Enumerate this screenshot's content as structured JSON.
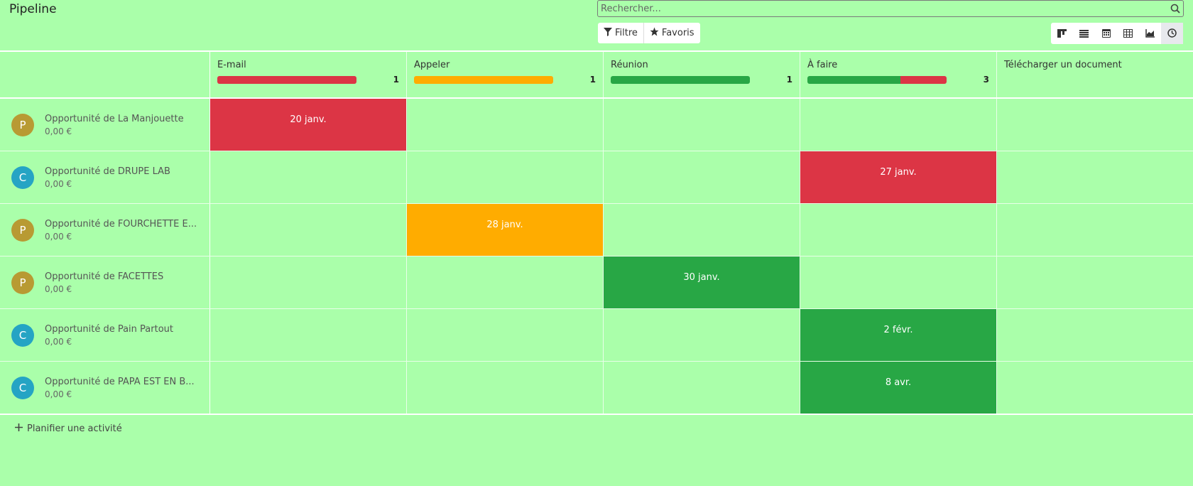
{
  "title": "Pipeline",
  "search": {
    "placeholder": "Rechercher..."
  },
  "filters": {
    "filter_label": "Filtre",
    "favorites_label": "Favoris"
  },
  "views": [
    "kanban-view-icon",
    "list-view-icon",
    "calendar-view-icon",
    "pivot-view-icon",
    "graph-view-icon",
    "activity-view-icon"
  ],
  "columns": [
    {
      "name": "E-mail",
      "count": "1",
      "progress": {
        "overdue": 1.0,
        "planned": 0,
        "today": 0
      }
    },
    {
      "name": "Appeler",
      "count": "1",
      "progress": {
        "overdue": 0,
        "planned": 0,
        "today": 1.0
      }
    },
    {
      "name": "Réunion",
      "count": "1",
      "progress": {
        "overdue": 0,
        "planned": 1.0,
        "today": 0
      }
    },
    {
      "name": "À faire",
      "count": "3",
      "progress": {
        "overdue": 0.33,
        "planned": 0.67,
        "today": 0
      }
    },
    {
      "name": "Télécharger un document",
      "count": "",
      "progress": null
    }
  ],
  "records": [
    {
      "initial": "P",
      "avatar_color": "#b89a33",
      "name": "Opportunité de La Manjouette",
      "amount": "0,00 €",
      "activity": {
        "col": 0,
        "date": "20 janv.",
        "state": "red"
      }
    },
    {
      "initial": "C",
      "avatar_color": "#25a4c4",
      "name": "Opportunité de DRUPE LAB",
      "amount": "0,00 €",
      "activity": {
        "col": 3,
        "date": "27 janv.",
        "state": "red"
      }
    },
    {
      "initial": "P",
      "avatar_color": "#b89a33",
      "name": "Opportunité de FOURCHETTE E...",
      "amount": "0,00 €",
      "activity": {
        "col": 1,
        "date": "28 janv.",
        "state": "orange"
      }
    },
    {
      "initial": "P",
      "avatar_color": "#b89a33",
      "name": "Opportunité de FACETTES",
      "amount": "0,00 €",
      "activity": {
        "col": 2,
        "date": "30 janv.",
        "state": "green"
      }
    },
    {
      "initial": "C",
      "avatar_color": "#25a4c4",
      "name": "Opportunité de Pain Partout",
      "amount": "0,00 €",
      "activity": {
        "col": 3,
        "date": "2 févr.",
        "state": "green"
      }
    },
    {
      "initial": "C",
      "avatar_color": "#25a4c4",
      "name": "Opportunité de PAPA EST EN B...",
      "amount": "0,00 €",
      "activity": {
        "col": 3,
        "date": "8 avr.",
        "state": "green"
      }
    }
  ],
  "add_activity_label": "Planifier une activité",
  "colors": {
    "overdue": "#dc3545",
    "today": "#ffac00",
    "planned": "#28a745"
  }
}
